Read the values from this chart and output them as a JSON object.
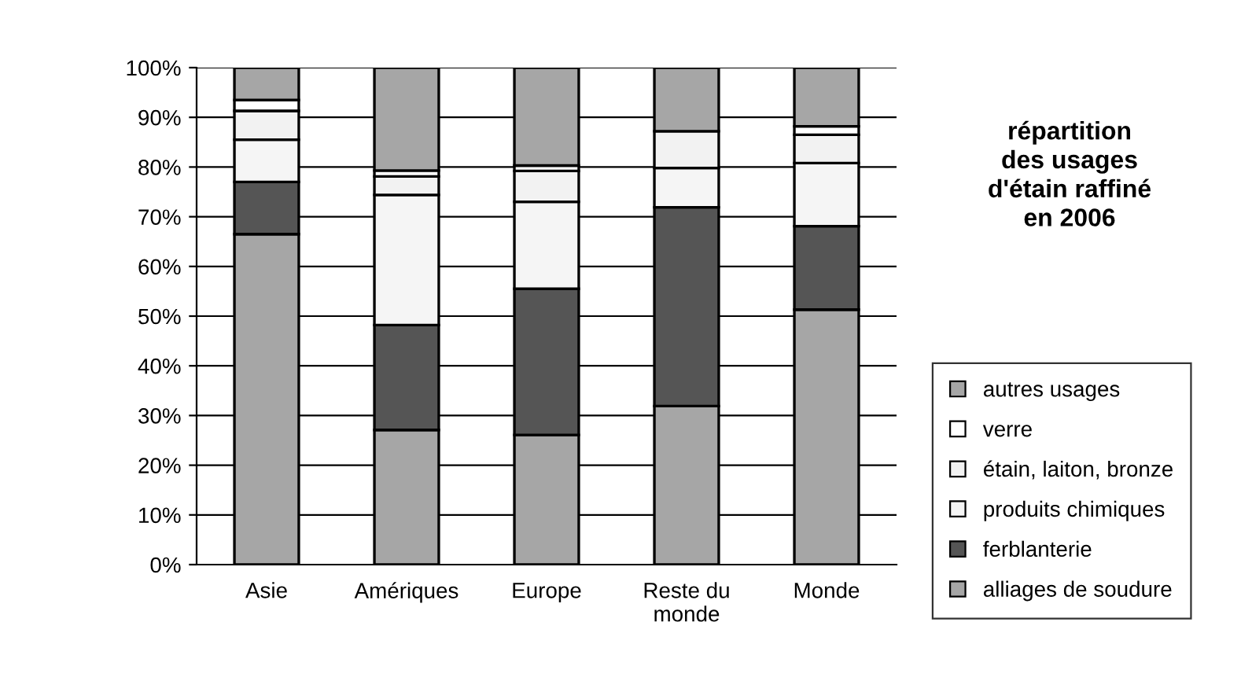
{
  "chart_data": {
    "type": "bar",
    "stacked": true,
    "title": "répartition\ndes usages\nd'étain raffiné\nen 2006",
    "categories": [
      "Asie",
      "Amériques",
      "Europe",
      "Reste du\nmonde",
      "Monde"
    ],
    "series": [
      {
        "name": "alliages de soudure",
        "color": "#a6a6a6",
        "values": [
          66.5,
          27.1,
          26.1,
          31.9,
          51.3
        ]
      },
      {
        "name": "ferblanterie",
        "color": "#555555",
        "values": [
          10.5,
          21.1,
          29.4,
          40.0,
          16.8
        ]
      },
      {
        "name": "produits chimiques",
        "color": "#f5f5f5",
        "values": [
          8.5,
          26.2,
          17.5,
          7.9,
          12.7
        ]
      },
      {
        "name": "étain, laiton, bronze",
        "color": "#f2f2f2",
        "values": [
          5.8,
          3.7,
          6.2,
          7.4,
          5.7
        ]
      },
      {
        "name": "verre",
        "color": "#ffffff",
        "values": [
          2.2,
          1.2,
          1.1,
          null,
          1.7
        ]
      },
      {
        "name": "autres usages",
        "color": "#a6a6a6",
        "values": [
          6.5,
          20.7,
          19.7,
          12.8,
          11.8
        ]
      }
    ],
    "ylim": [
      0,
      100
    ],
    "yticks": [
      {
        "value": 0,
        "label": "0%"
      },
      {
        "value": 10,
        "label": "10%"
      },
      {
        "value": 20,
        "label": "20%"
      },
      {
        "value": 30,
        "label": "30%"
      },
      {
        "value": 40,
        "label": "40%"
      },
      {
        "value": 50,
        "label": "50%"
      },
      {
        "value": 60,
        "label": "60%"
      },
      {
        "value": 70,
        "label": "70%"
      },
      {
        "value": 80,
        "label": "80%"
      },
      {
        "value": 90,
        "label": "90%"
      },
      {
        "value": 100,
        "label": "100%"
      }
    ],
    "grid": "y",
    "legend": "right"
  }
}
